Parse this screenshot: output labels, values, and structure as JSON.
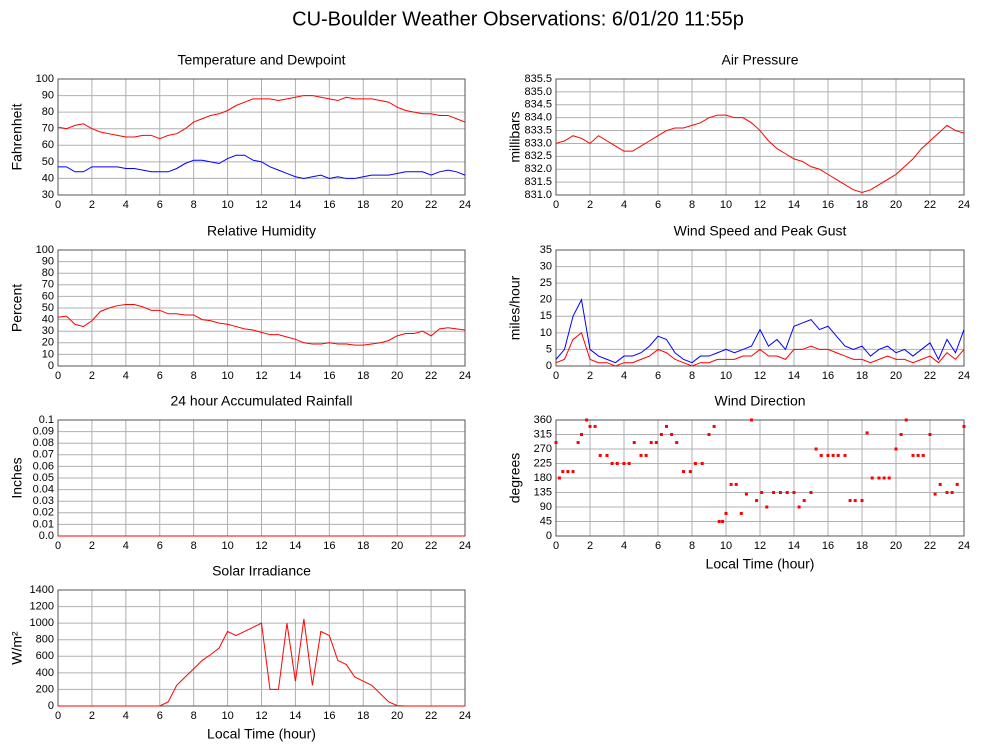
{
  "title": "CU-Boulder Weather Observations: 6/01/20 11:55p",
  "chart_data": [
    {
      "type": "line",
      "title": "Temperature and Dewpoint",
      "ylabel": "Fahrenheit",
      "xlim": [
        0,
        24
      ],
      "xticks": [
        0,
        2,
        4,
        6,
        8,
        10,
        12,
        14,
        16,
        18,
        20,
        22,
        24
      ],
      "ylim": [
        30,
        100
      ],
      "yticks": [
        30,
        40,
        50,
        60,
        70,
        80,
        90,
        100
      ],
      "grid": true,
      "x": [
        0,
        0.5,
        1,
        1.5,
        2,
        2.5,
        3,
        3.5,
        4,
        4.5,
        5,
        5.5,
        6,
        6.5,
        7,
        7.5,
        8,
        8.5,
        9,
        9.5,
        10,
        10.5,
        11,
        11.5,
        12,
        12.5,
        13,
        13.5,
        14,
        14.5,
        15,
        15.5,
        16,
        16.5,
        17,
        17.5,
        18,
        18.5,
        19,
        19.5,
        20,
        20.5,
        21,
        21.5,
        22,
        22.5,
        23,
        23.5,
        24
      ],
      "series": [
        {
          "color": "#ff0000",
          "values": [
            71,
            70,
            72,
            73,
            70,
            68,
            67,
            66,
            65,
            65,
            66,
            66,
            64,
            66,
            67,
            70,
            74,
            76,
            78,
            79,
            81,
            84,
            86,
            88,
            88,
            88,
            87,
            88,
            89,
            90,
            90,
            89,
            88,
            87,
            89,
            88,
            88,
            88,
            87,
            86,
            83,
            81,
            80,
            79,
            79,
            78,
            78,
            76,
            74
          ]
        },
        {
          "color": "#0000ff",
          "values": [
            47,
            47,
            44,
            44,
            47,
            47,
            47,
            47,
            46,
            46,
            45,
            44,
            44,
            44,
            46,
            49,
            51,
            51,
            50,
            49,
            52,
            54,
            54,
            51,
            50,
            47,
            45,
            43,
            41,
            40,
            41,
            42,
            40,
            41,
            40,
            40,
            41,
            42,
            42,
            42,
            43,
            44,
            44,
            44,
            42,
            44,
            45,
            44,
            42
          ]
        }
      ]
    },
    {
      "type": "line",
      "title": "Air Pressure",
      "ylabel": "millibars",
      "xlim": [
        0,
        24
      ],
      "xticks": [
        0,
        2,
        4,
        6,
        8,
        10,
        12,
        14,
        16,
        18,
        20,
        22,
        24
      ],
      "ylim": [
        831,
        835.5
      ],
      "yticks": [
        {
          "value": 831,
          "label": "831.0"
        },
        831.5,
        {
          "value": 832,
          "label": "832.0"
        },
        832.5,
        {
          "value": 833,
          "label": "833.0"
        },
        833.5,
        {
          "value": 834,
          "label": "834.0"
        },
        834.5,
        {
          "value": 835,
          "label": "835.0"
        },
        835.5
      ],
      "grid": true,
      "x": [
        0,
        0.5,
        1,
        1.5,
        2,
        2.5,
        3,
        3.5,
        4,
        4.5,
        5,
        5.5,
        6,
        6.5,
        7,
        7.5,
        8,
        8.5,
        9,
        9.5,
        10,
        10.5,
        11,
        11.5,
        12,
        12.5,
        13,
        13.5,
        14,
        14.5,
        15,
        15.5,
        16,
        16.5,
        17,
        17.5,
        18,
        18.5,
        19,
        19.5,
        20,
        20.5,
        21,
        21.5,
        22,
        22.5,
        23,
        23.5,
        24
      ],
      "series": [
        {
          "color": "#ff0000",
          "values": [
            833.0,
            833.1,
            833.3,
            833.2,
            833.0,
            833.3,
            833.1,
            832.9,
            832.7,
            832.7,
            832.9,
            833.1,
            833.3,
            833.5,
            833.6,
            833.6,
            833.7,
            833.8,
            834.0,
            834.1,
            834.1,
            834.0,
            834.0,
            833.8,
            833.5,
            833.1,
            832.8,
            832.6,
            832.4,
            832.3,
            832.1,
            832.0,
            831.8,
            831.6,
            831.4,
            831.2,
            831.1,
            831.2,
            831.4,
            831.6,
            831.8,
            832.1,
            832.4,
            832.8,
            833.1,
            833.4,
            833.7,
            833.5,
            833.4
          ]
        }
      ]
    },
    {
      "type": "line",
      "title": "Relative Humidity",
      "ylabel": "Percent",
      "xlim": [
        0,
        24
      ],
      "xticks": [
        0,
        2,
        4,
        6,
        8,
        10,
        12,
        14,
        16,
        18,
        20,
        22,
        24
      ],
      "ylim": [
        0,
        100
      ],
      "yticks": [
        0,
        10,
        20,
        30,
        40,
        50,
        60,
        70,
        80,
        90,
        100
      ],
      "grid": true,
      "x": [
        0,
        0.5,
        1,
        1.5,
        2,
        2.5,
        3,
        3.5,
        4,
        4.5,
        5,
        5.5,
        6,
        6.5,
        7,
        7.5,
        8,
        8.5,
        9,
        9.5,
        10,
        10.5,
        11,
        11.5,
        12,
        12.5,
        13,
        13.5,
        14,
        14.5,
        15,
        15.5,
        16,
        16.5,
        17,
        17.5,
        18,
        18.5,
        19,
        19.5,
        20,
        20.5,
        21,
        21.5,
        22,
        22.5,
        23,
        23.5,
        24
      ],
      "series": [
        {
          "color": "#ff0000",
          "values": [
            42,
            43,
            36,
            34,
            39,
            47,
            50,
            52,
            53,
            53,
            51,
            48,
            48,
            45,
            45,
            44,
            44,
            40,
            39,
            37,
            36,
            34,
            32,
            31,
            29,
            27,
            27,
            25,
            23,
            20,
            19,
            19,
            20,
            19,
            19,
            18,
            18,
            19,
            20,
            22,
            26,
            28,
            28,
            30,
            26,
            32,
            33,
            32,
            31
          ]
        }
      ]
    },
    {
      "type": "line",
      "title": "Wind Speed and Peak Gust",
      "ylabel": "miles/hour",
      "xlim": [
        0,
        24
      ],
      "xticks": [
        0,
        2,
        4,
        6,
        8,
        10,
        12,
        14,
        16,
        18,
        20,
        22,
        24
      ],
      "ylim": [
        0,
        35
      ],
      "yticks": [
        0,
        5,
        10,
        15,
        20,
        25,
        30,
        35
      ],
      "grid": true,
      "x": [
        0,
        0.5,
        1,
        1.5,
        2,
        2.5,
        3,
        3.5,
        4,
        4.5,
        5,
        5.5,
        6,
        6.5,
        7,
        7.5,
        8,
        8.5,
        9,
        9.5,
        10,
        10.5,
        11,
        11.5,
        12,
        12.5,
        13,
        13.5,
        14,
        14.5,
        15,
        15.5,
        16,
        16.5,
        17,
        17.5,
        18,
        18.5,
        19,
        19.5,
        20,
        20.5,
        21,
        21.5,
        22,
        22.5,
        23,
        23.5,
        24
      ],
      "series": [
        {
          "color": "#0000ff",
          "values": [
            2,
            5,
            15,
            20,
            5,
            3,
            2,
            1,
            3,
            3,
            4,
            6,
            9,
            8,
            4,
            2,
            1,
            3,
            3,
            4,
            5,
            4,
            5,
            6,
            11,
            6,
            8,
            5,
            12,
            13,
            14,
            11,
            12,
            9,
            6,
            5,
            6,
            3,
            5,
            6,
            4,
            5,
            3,
            5,
            7,
            2,
            8,
            4,
            11
          ]
        },
        {
          "color": "#ff0000",
          "values": [
            1,
            2,
            8,
            10,
            2,
            1,
            1,
            0,
            1,
            1,
            2,
            3,
            5,
            4,
            2,
            1,
            0,
            1,
            1,
            2,
            2,
            2,
            3,
            3,
            5,
            3,
            3,
            2,
            5,
            5,
            6,
            5,
            5,
            4,
            3,
            2,
            2,
            1,
            2,
            3,
            2,
            2,
            1,
            2,
            3,
            1,
            4,
            2,
            5
          ]
        }
      ]
    },
    {
      "type": "line",
      "title": "24 hour Accumulated Rainfall",
      "ylabel": "Inches",
      "xlim": [
        0,
        24
      ],
      "xticks": [
        0,
        2,
        4,
        6,
        8,
        10,
        12,
        14,
        16,
        18,
        20,
        22,
        24
      ],
      "ylim": [
        0,
        0.1
      ],
      "yticks": [
        {
          "value": 0,
          "label": "0.0"
        },
        0.01,
        0.02,
        0.03,
        0.04,
        0.05,
        0.06,
        0.07,
        0.08,
        0.09,
        0.1
      ],
      "grid": true,
      "x": [
        0,
        1,
        2,
        3,
        4,
        5,
        6,
        7,
        8,
        9,
        10,
        11,
        12,
        13,
        14,
        15,
        16,
        17,
        18,
        19,
        20,
        21,
        22,
        23,
        24
      ],
      "series": [
        {
          "color": "#ff0000",
          "values": [
            0,
            0,
            0,
            0,
            0,
            0,
            0,
            0,
            0,
            0,
            0,
            0,
            0,
            0,
            0,
            0,
            0,
            0,
            0,
            0,
            0,
            0,
            0,
            0,
            0
          ]
        }
      ]
    },
    {
      "type": "scatter",
      "title": "Wind Direction",
      "ylabel": "degrees",
      "xlabel": "Local Time (hour)",
      "xlim": [
        0,
        24
      ],
      "xticks": [
        0,
        2,
        4,
        6,
        8,
        10,
        12,
        14,
        16,
        18,
        20,
        22,
        24
      ],
      "ylim": [
        0,
        360
      ],
      "yticks": [
        0,
        45,
        90,
        135,
        180,
        225,
        270,
        315,
        360
      ],
      "grid": true,
      "x": [
        0,
        0.2,
        0.4,
        0.7,
        1,
        1.3,
        1.5,
        1.8,
        2,
        2.3,
        2.6,
        3,
        3.3,
        3.6,
        4,
        4.3,
        4.6,
        5,
        5.3,
        5.6,
        5.9,
        6.2,
        6.5,
        6.8,
        7.1,
        7.5,
        7.9,
        8.2,
        8.6,
        9,
        9.3,
        9.6,
        9.8,
        10,
        10.3,
        10.6,
        10.9,
        11.2,
        11.5,
        11.8,
        12.1,
        12.4,
        12.8,
        13.2,
        13.6,
        14,
        14.3,
        14.6,
        15,
        15.3,
        15.6,
        16,
        16.3,
        16.6,
        17,
        17.3,
        17.6,
        18,
        18.3,
        18.6,
        19,
        19.3,
        19.6,
        20,
        20.3,
        20.6,
        21,
        21.3,
        21.6,
        22,
        22.3,
        22.6,
        23,
        23.3,
        23.6,
        24
      ],
      "series": [
        {
          "color": "#ff0000",
          "values": [
            290,
            180,
            200,
            200,
            200,
            290,
            315,
            360,
            340,
            340,
            250,
            250,
            225,
            225,
            225,
            225,
            290,
            250,
            250,
            290,
            290,
            315,
            340,
            315,
            290,
            200,
            200,
            225,
            225,
            315,
            340,
            45,
            45,
            70,
            160,
            160,
            70,
            130,
            360,
            110,
            135,
            90,
            135,
            135,
            135,
            135,
            90,
            110,
            135,
            270,
            250,
            250,
            250,
            250,
            250,
            110,
            110,
            110,
            320,
            180,
            180,
            180,
            180,
            270,
            315,
            360,
            250,
            250,
            250,
            315,
            130,
            160,
            135,
            135,
            160,
            340
          ]
        }
      ]
    },
    {
      "type": "line",
      "title": "Solar Irradiance",
      "ylabel": "W/m²",
      "xlabel": "Local Time (hour)",
      "xlim": [
        0,
        24
      ],
      "xticks": [
        0,
        2,
        4,
        6,
        8,
        10,
        12,
        14,
        16,
        18,
        20,
        22,
        24
      ],
      "ylim": [
        0,
        1400
      ],
      "yticks": [
        0,
        200,
        400,
        600,
        800,
        1000,
        1200,
        1400
      ],
      "grid": true,
      "x": [
        0,
        0.5,
        1,
        1.5,
        2,
        2.5,
        3,
        3.5,
        4,
        4.5,
        5,
        5.5,
        6,
        6.5,
        7,
        7.5,
        8,
        8.5,
        9,
        9.5,
        10,
        10.5,
        11,
        11.5,
        12,
        12.5,
        13,
        13.5,
        14,
        14.5,
        15,
        15.5,
        16,
        16.5,
        17,
        17.5,
        18,
        18.5,
        19,
        19.5,
        20,
        20.5,
        21,
        21.5,
        22,
        22.5,
        23,
        23.5,
        24
      ],
      "series": [
        {
          "color": "#ff0000",
          "values": [
            0,
            0,
            0,
            0,
            0,
            0,
            0,
            0,
            0,
            0,
            0,
            0,
            0,
            50,
            250,
            350,
            450,
            550,
            620,
            700,
            900,
            850,
            900,
            950,
            1000,
            200,
            200,
            1000,
            300,
            1050,
            250,
            900,
            850,
            550,
            500,
            350,
            300,
            250,
            150,
            50,
            5,
            0,
            0,
            0,
            0,
            0,
            0,
            0,
            0
          ]
        }
      ]
    }
  ]
}
